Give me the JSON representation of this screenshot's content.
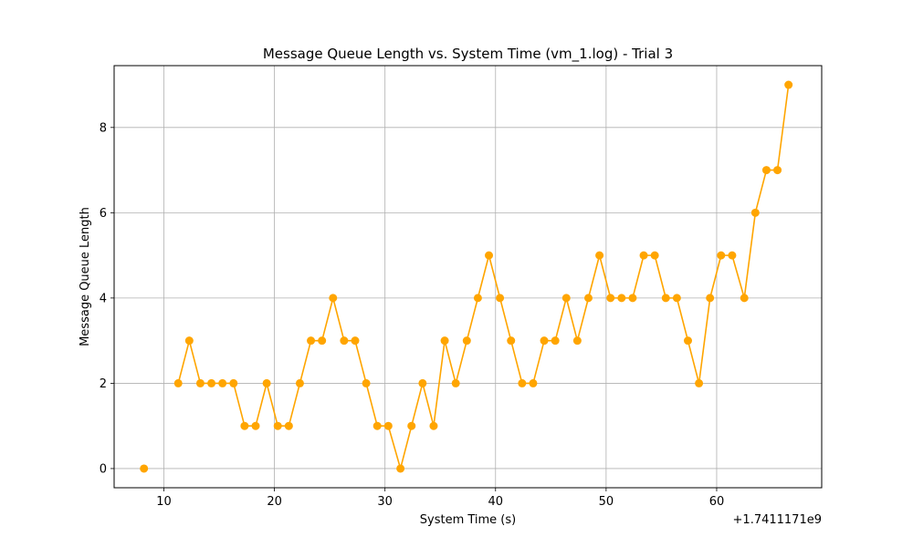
{
  "chart_data": {
    "type": "line",
    "title": "Message Queue Length vs. System Time (vm_1.log) - Trial 3",
    "xlabel": "System Time (s)",
    "ylabel": "Message Queue Length",
    "x_offset_label": "+1.7411171e9",
    "xlim": [
      5.5,
      69.5
    ],
    "ylim": [
      -0.45,
      9.45
    ],
    "x_ticks": [
      10,
      20,
      30,
      40,
      50,
      60
    ],
    "y_ticks": [
      0,
      2,
      4,
      6,
      8
    ],
    "grid": true,
    "line_color": "#FFA500",
    "segments": [
      {
        "x": [
          8.2
        ],
        "y": [
          0
        ]
      },
      {
        "x": [
          11.3,
          12.3,
          13.3,
          14.3,
          15.3,
          16.3,
          17.3,
          18.3,
          19.3,
          20.3,
          21.3,
          22.3,
          23.3,
          24.3,
          25.3,
          26.3,
          27.3,
          28.3,
          29.3,
          30.3,
          31.4,
          32.4,
          33.4,
          34.4,
          35.4,
          36.4,
          37.4,
          38.4,
          39.4,
          40.4,
          41.4,
          42.4,
          43.4,
          44.4,
          45.4,
          46.4,
          47.4,
          48.4,
          49.4,
          50.4,
          51.4,
          52.4,
          53.4,
          54.4,
          55.4,
          56.4,
          57.4,
          58.4,
          59.4,
          60.4,
          61.4,
          62.5,
          63.5,
          64.5,
          65.5,
          66.5
        ],
        "y": [
          2,
          3,
          2,
          2,
          2,
          2,
          1,
          1,
          2,
          1,
          1,
          2,
          3,
          3,
          4,
          3,
          3,
          2,
          1,
          1,
          0,
          1,
          2,
          1,
          3,
          2,
          3,
          4,
          5,
          4,
          3,
          2,
          2,
          3,
          3,
          4,
          3,
          4,
          5,
          4,
          4,
          4,
          5,
          5,
          4,
          4,
          3,
          2,
          4,
          5,
          5,
          4,
          6,
          7,
          7,
          9
        ]
      }
    ]
  }
}
